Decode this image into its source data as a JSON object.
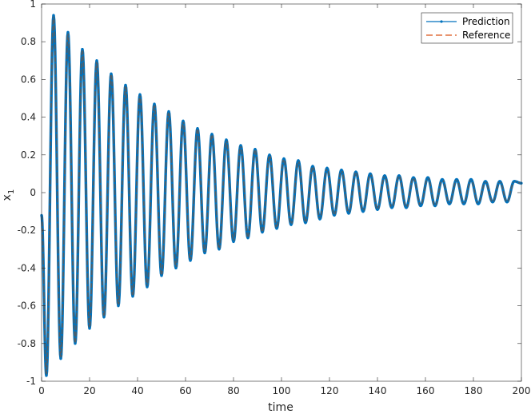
{
  "chart_data": {
    "type": "line",
    "title": "",
    "xlabel": "time",
    "ylabel": "x",
    "ylabel_subscript": "1",
    "xlim": [
      0,
      200
    ],
    "ylim": [
      -1,
      1
    ],
    "xticks": [
      0,
      20,
      40,
      60,
      80,
      100,
      120,
      140,
      160,
      180,
      200
    ],
    "yticks": [
      -1,
      -0.8,
      -0.6,
      -0.4,
      -0.2,
      0,
      0.2,
      0.4,
      0.6,
      0.8,
      1
    ],
    "xtick_labels": [
      "0",
      "20",
      "40",
      "60",
      "80",
      "100",
      "120",
      "140",
      "160",
      "180",
      "200"
    ],
    "ytick_labels": [
      "-1",
      "-0.8",
      "-0.6",
      "-0.4",
      "-0.2",
      "0",
      "0.2",
      "0.4",
      "0.6",
      "0.8",
      "1"
    ],
    "grid": false,
    "legend_position": "top-right",
    "colors": {
      "prediction": "#0072bd",
      "reference": "#d95319",
      "axis": "#262626"
    },
    "series": [
      {
        "name": "Prediction",
        "style": "solid-dot",
        "x": [
          0,
          2,
          5,
          8,
          11,
          14,
          17,
          20,
          23,
          26,
          29,
          32,
          35,
          38,
          41,
          44,
          47,
          50,
          53,
          56,
          59,
          62,
          65,
          68,
          71,
          74,
          77,
          80,
          83,
          86,
          89,
          92,
          95,
          98,
          101,
          104,
          107,
          110,
          113,
          116,
          119,
          122,
          125,
          128,
          131,
          134,
          137,
          140,
          143,
          146,
          149,
          152,
          155,
          158,
          161,
          164,
          167,
          170,
          173,
          176,
          179,
          182,
          185,
          188,
          191,
          194,
          197,
          200
        ],
        "y": [
          -0.12,
          -0.97,
          0.94,
          -0.88,
          0.85,
          -0.8,
          0.76,
          -0.72,
          0.7,
          -0.66,
          0.63,
          -0.6,
          0.57,
          -0.55,
          0.52,
          -0.5,
          0.47,
          -0.44,
          0.43,
          -0.4,
          0.38,
          -0.36,
          0.34,
          -0.32,
          0.31,
          -0.3,
          0.28,
          -0.26,
          0.25,
          -0.24,
          0.23,
          -0.21,
          0.2,
          -0.19,
          0.18,
          -0.17,
          0.17,
          -0.16,
          0.14,
          -0.14,
          0.13,
          -0.12,
          0.12,
          -0.11,
          0.11,
          -0.1,
          0.1,
          -0.09,
          0.09,
          -0.08,
          0.09,
          -0.08,
          0.08,
          -0.07,
          0.08,
          -0.07,
          0.07,
          -0.06,
          0.07,
          -0.06,
          0.07,
          -0.06,
          0.06,
          -0.05,
          0.06,
          -0.05,
          0.06,
          0.05
        ]
      },
      {
        "name": "Reference",
        "style": "dashed",
        "x": [
          0,
          2,
          5,
          8,
          11,
          14,
          17,
          20,
          23,
          26,
          29,
          32,
          35,
          38,
          41,
          44,
          47,
          50,
          53,
          56,
          59,
          62,
          65,
          68,
          71,
          74,
          77,
          80,
          83,
          86,
          89,
          92,
          95,
          98,
          101,
          104,
          107,
          110,
          113,
          116,
          119,
          122,
          125,
          128,
          131,
          134,
          137,
          140,
          143,
          146,
          149,
          152,
          155,
          158,
          161,
          164,
          167,
          170,
          173,
          176,
          179,
          182,
          185,
          188,
          191,
          194,
          197,
          200
        ],
        "y": [
          -0.12,
          -0.97,
          0.94,
          -0.88,
          0.85,
          -0.8,
          0.76,
          -0.72,
          0.7,
          -0.66,
          0.63,
          -0.6,
          0.57,
          -0.55,
          0.52,
          -0.5,
          0.47,
          -0.44,
          0.43,
          -0.4,
          0.38,
          -0.36,
          0.34,
          -0.32,
          0.31,
          -0.3,
          0.28,
          -0.26,
          0.25,
          -0.24,
          0.23,
          -0.21,
          0.2,
          -0.19,
          0.18,
          -0.17,
          0.17,
          -0.16,
          0.14,
          -0.14,
          0.13,
          -0.12,
          0.12,
          -0.11,
          0.11,
          -0.1,
          0.1,
          -0.09,
          0.09,
          -0.08,
          0.09,
          -0.08,
          0.08,
          -0.07,
          0.08,
          -0.07,
          0.07,
          -0.06,
          0.07,
          -0.06,
          0.07,
          -0.06,
          0.06,
          -0.05,
          0.06,
          -0.05,
          0.06,
          0.05
        ]
      }
    ]
  }
}
